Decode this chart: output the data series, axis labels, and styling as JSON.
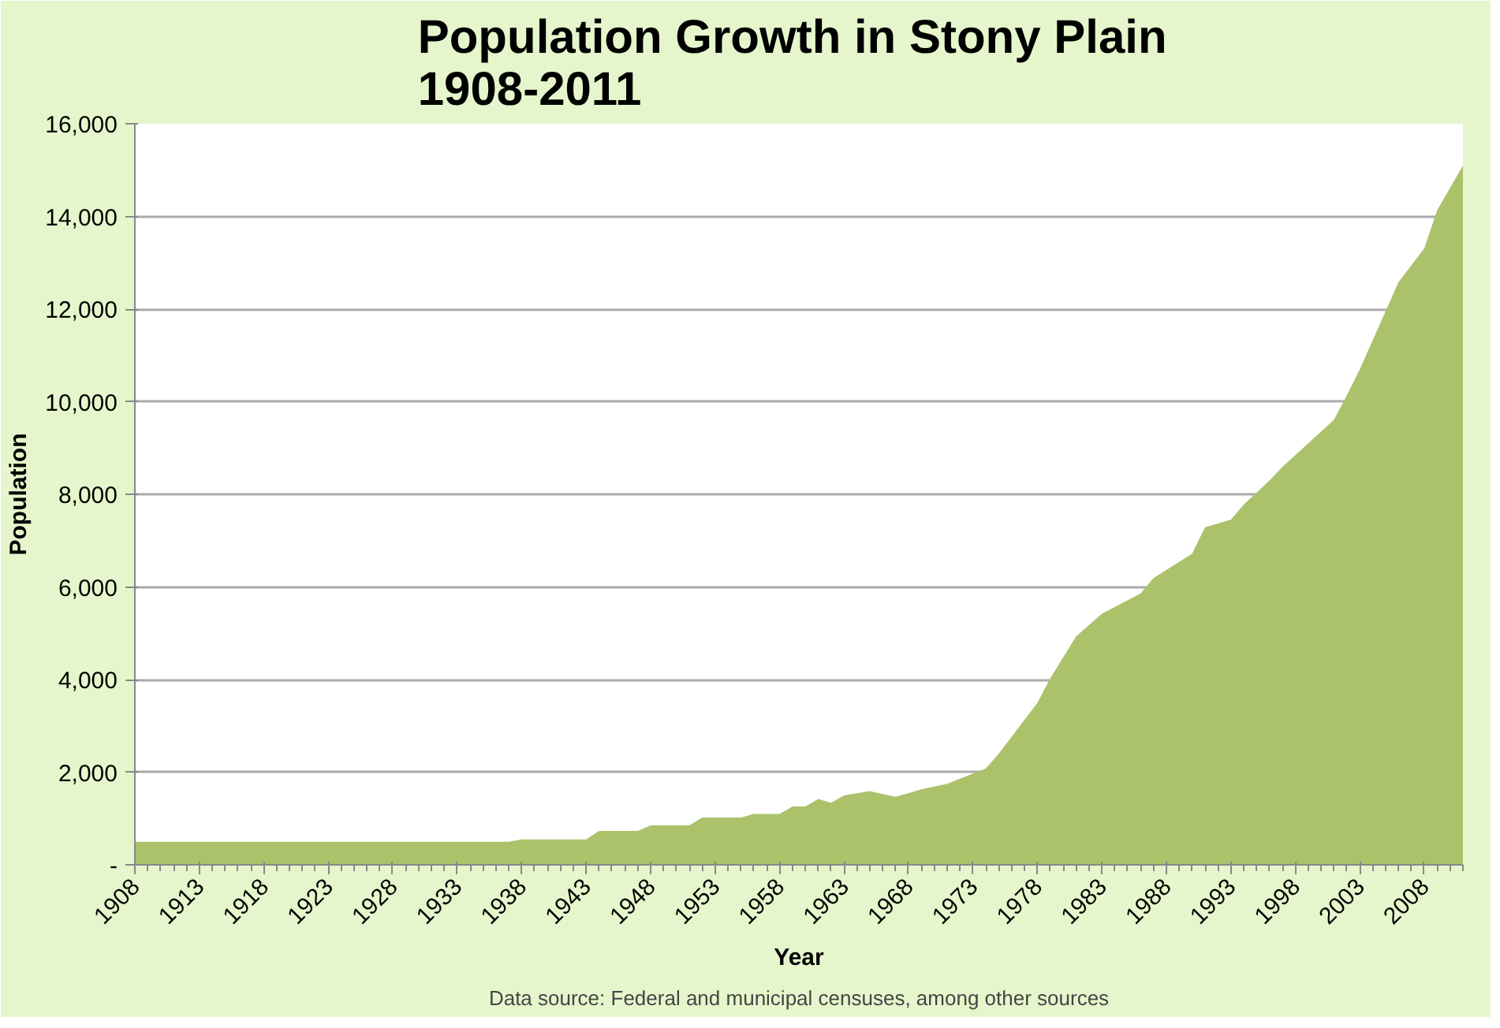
{
  "chart_data": {
    "type": "area",
    "title": "Population Growth  in Stony Plain\n1908-2011",
    "xlabel": "Year",
    "ylabel": "Population",
    "annotations": [
      "Data source: Federal and municipal censuses, among other sources"
    ],
    "x": [
      1908,
      1937,
      1938,
      1943,
      1944,
      1947,
      1948,
      1951,
      1952,
      1955,
      1956,
      1958,
      1959,
      1960,
      1961,
      1962,
      1963,
      1965,
      1967,
      1969,
      1971,
      1974,
      1975,
      1978,
      1979,
      1981,
      1983,
      1986,
      1987,
      1990,
      1991,
      1993,
      1994,
      1996,
      1997,
      2001,
      2002,
      2003,
      2006,
      2008,
      2009,
      2011
    ],
    "series": [
      {
        "color": "#abc26b",
        "values": [
          500,
          500,
          550,
          550,
          730,
          730,
          850,
          850,
          1020,
          1020,
          1100,
          1100,
          1260,
          1260,
          1420,
          1340,
          1500,
          1590,
          1470,
          1630,
          1750,
          2080,
          2400,
          3500,
          4030,
          4930,
          5420,
          5860,
          6190,
          6720,
          7290,
          7450,
          7780,
          8300,
          8590,
          9610,
          10140,
          10700,
          12580,
          13310,
          14130,
          15100
        ]
      }
    ],
    "xlim": [
      1908,
      2011
    ],
    "xticks": [
      1908,
      1913,
      1918,
      1923,
      1928,
      1933,
      1938,
      1943,
      1948,
      1953,
      1958,
      1963,
      1968,
      1973,
      1978,
      1983,
      1988,
      1993,
      1998,
      2003,
      2008
    ],
    "ylim": [
      0,
      16000
    ],
    "yticks": [
      {
        "value": 0,
        "label": "-"
      },
      {
        "value": 2000,
        "label": "2,000"
      },
      {
        "value": 4000,
        "label": "4,000"
      },
      {
        "value": 6000,
        "label": "6,000"
      },
      {
        "value": 8000,
        "label": "8,000"
      },
      {
        "value": 10000,
        "label": "10,000"
      },
      {
        "value": 12000,
        "label": "12,000"
      },
      {
        "value": 14000,
        "label": "14,000"
      },
      {
        "value": 16000,
        "label": "16,000"
      }
    ],
    "grid": "y"
  }
}
